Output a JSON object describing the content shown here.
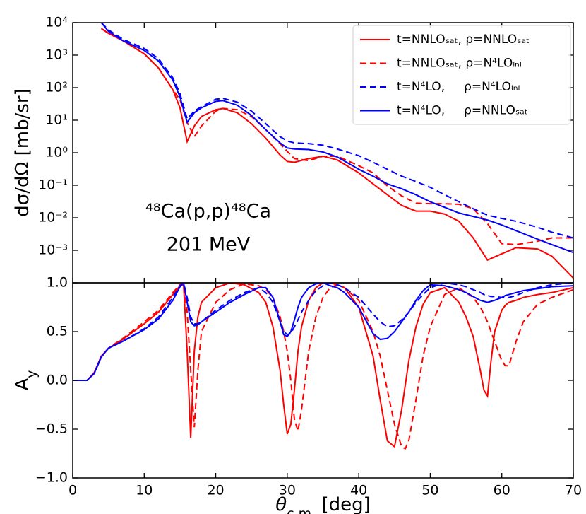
{
  "chart_data": [
    {
      "type": "line",
      "ylabel": "dσ/dΩ [mb/sr]",
      "annotations": [
        "⁴⁸Ca(p,p)⁴⁸Ca",
        "201 MeV"
      ],
      "log_y": true,
      "legend": "upper right",
      "xlim": [
        0,
        70
      ],
      "ylim": [
        0.0001,
        10000
      ],
      "xticks": [
        0,
        10,
        20,
        30,
        40,
        50,
        60,
        70
      ],
      "yticks": [
        {
          "value": 0.001,
          "label": "10⁻³"
        },
        {
          "value": 0.01,
          "label": "10⁻²"
        },
        {
          "value": 0.1,
          "label": "10⁻¹"
        },
        {
          "value": 1,
          "label": "10⁰"
        },
        {
          "value": 10,
          "label": "10¹"
        },
        {
          "value": 100,
          "label": "10²"
        },
        {
          "value": 1000,
          "label": "10³"
        },
        {
          "value": 10000,
          "label": "10⁴"
        }
      ],
      "x": [
        4,
        5,
        7,
        10,
        12,
        14,
        15,
        16,
        17,
        18,
        20,
        21,
        23,
        25,
        27,
        29,
        30,
        31,
        33,
        35,
        37,
        40,
        42,
        44,
        46,
        48,
        50,
        52,
        54,
        56,
        58,
        60,
        62,
        65,
        67,
        70
      ],
      "series": [
        {
          "name": "t=NNLOₛₐₜ, ρ=NNLOₛₐₜ",
          "color": "#ff0000",
          "linestyle": "solid",
          "values": [
            6600,
            4700,
            2800,
            1100,
            400,
            86,
            24,
            2.2,
            6.6,
            13,
            21,
            23,
            17,
            7.8,
            2.8,
            0.85,
            0.54,
            0.51,
            0.66,
            0.78,
            0.6,
            0.24,
            0.11,
            0.051,
            0.024,
            0.016,
            0.016,
            0.013,
            0.0078,
            0.0024,
            0.0005,
            0.00078,
            0.0012,
            0.0011,
            0.00066,
            0.00014
          ]
        },
        {
          "name": "t=NNLOₛₐₜ, ρ=N⁴LOₗₙₗ",
          "color": "#ff0000",
          "linestyle": "dashed",
          "values": [
            6600,
            4700,
            2800,
            1100,
            400,
            86,
            43,
            8.5,
            3.1,
            6.6,
            19,
            23,
            21,
            13,
            5.1,
            1.9,
            1.1,
            0.66,
            0.57,
            0.78,
            0.78,
            0.4,
            0.24,
            0.095,
            0.047,
            0.028,
            0.027,
            0.027,
            0.026,
            0.019,
            0.0066,
            0.0016,
            0.0015,
            0.0019,
            0.0024,
            0.0024
          ]
        },
        {
          "name": "t=N⁴LO,     ρ=N⁴LOₗₙₗ",
          "color": "#0000ff",
          "linestyle": "dashed",
          "values": [
            10000,
            6000,
            3100,
            1600,
            780,
            200,
            66,
            11,
            19,
            26,
            44,
            47,
            36,
            19,
            7.8,
            3.1,
            2.3,
            2.0,
            1.9,
            1.7,
            1.3,
            0.81,
            0.51,
            0.31,
            0.19,
            0.13,
            0.086,
            0.051,
            0.031,
            0.019,
            0.012,
            0.0095,
            0.0078,
            0.0051,
            0.0036,
            0.0024
          ]
        },
        {
          "name": "t=N⁴LO,     ρ=NNLOₛₐₜ",
          "color": "#0000ff",
          "linestyle": "solid",
          "values": [
            10000,
            5400,
            2800,
            1400,
            660,
            170,
            52,
            8.6,
            17,
            24,
            38,
            40,
            29,
            14,
            5.1,
            2.0,
            1.4,
            1.3,
            1.25,
            1.05,
            0.74,
            0.31,
            0.19,
            0.11,
            0.078,
            0.051,
            0.031,
            0.021,
            0.014,
            0.011,
            0.0085,
            0.006,
            0.004,
            0.0022,
            0.0015,
            0.00085
          ]
        }
      ]
    },
    {
      "type": "line",
      "ylabel": [
        "A",
        "y"
      ],
      "xlabel": [
        "θ",
        "c.m.",
        " [deg]"
      ],
      "xlim": [
        0,
        70
      ],
      "ylim": [
        -1,
        1
      ],
      "xticks": [
        0,
        10,
        20,
        30,
        40,
        50,
        60,
        70
      ],
      "yticks": [
        {
          "value": -1,
          "label": "−1.0"
        },
        {
          "value": -0.5,
          "label": "−0.5"
        },
        {
          "value": 0,
          "label": "0.0"
        },
        {
          "value": 0.5,
          "label": "0.5"
        },
        {
          "value": 1,
          "label": "1.0"
        }
      ],
      "x": [
        0,
        2,
        3,
        4,
        5,
        7,
        10,
        12,
        14,
        15,
        15.5,
        16,
        16.5,
        17,
        17.5,
        18,
        20,
        22,
        24,
        26,
        27,
        28,
        29,
        29.5,
        30,
        30.5,
        31,
        31.5,
        32,
        33,
        34,
        35,
        36,
        37,
        38,
        40,
        42,
        43,
        44,
        45,
        46,
        46.5,
        47,
        48,
        49,
        50,
        52,
        54,
        55,
        56,
        57,
        57.5,
        58,
        58.5,
        59,
        60,
        60.5,
        61,
        62,
        63,
        65,
        67,
        70
      ],
      "series": [
        {
          "name": "t=NNLOₛₐₜ, ρ=NNLOₛₐₜ",
          "color": "#ff0000",
          "linestyle": "solid",
          "values": [
            0,
            0,
            0.08,
            0.25,
            0.33,
            0.42,
            0.58,
            0.7,
            0.88,
            0.97,
            0.98,
            0.3,
            -0.59,
            0.3,
            0.65,
            0.8,
            0.95,
            1.0,
            0.98,
            0.9,
            0.8,
            0.55,
            0.1,
            -0.25,
            -0.55,
            -0.45,
            -0.1,
            0.3,
            0.55,
            0.82,
            0.95,
            1.0,
            1.0,
            0.98,
            0.95,
            0.75,
            0.25,
            -0.2,
            -0.62,
            -0.68,
            -0.3,
            -0.05,
            0.2,
            0.55,
            0.78,
            0.9,
            0.95,
            0.8,
            0.65,
            0.45,
            0.1,
            -0.1,
            -0.16,
            0.2,
            0.5,
            0.72,
            0.77,
            0.8,
            0.82,
            0.85,
            0.88,
            0.9,
            0.95
          ]
        },
        {
          "name": "t=NNLOₛₐₜ, ρ=N⁴LOₗₙₗ",
          "color": "#ff0000",
          "linestyle": "dashed",
          "values": [
            0,
            0,
            0.07,
            0.24,
            0.33,
            0.43,
            0.6,
            0.72,
            0.9,
            0.98,
            1.0,
            0.7,
            0.1,
            -0.48,
            0.1,
            0.5,
            0.8,
            0.93,
            0.99,
            0.97,
            0.93,
            0.85,
            0.65,
            0.5,
            0.3,
            0.0,
            -0.4,
            -0.52,
            -0.3,
            0.3,
            0.65,
            0.85,
            0.95,
            0.98,
            0.95,
            0.82,
            0.5,
            0.25,
            -0.1,
            -0.45,
            -0.68,
            -0.7,
            -0.62,
            -0.2,
            0.25,
            0.55,
            0.88,
            0.95,
            0.9,
            0.85,
            0.75,
            0.68,
            0.6,
            0.5,
            0.4,
            0.2,
            0.15,
            0.15,
            0.4,
            0.6,
            0.78,
            0.85,
            0.93
          ]
        },
        {
          "name": "t=N⁴LO,     ρ=N⁴LOₗₙₗ",
          "color": "#0000ff",
          "linestyle": "dashed",
          "values": [
            0,
            0,
            0.07,
            0.24,
            0.33,
            0.4,
            0.53,
            0.65,
            0.85,
            0.97,
            1.0,
            0.85,
            0.65,
            0.58,
            0.58,
            0.6,
            0.72,
            0.82,
            0.9,
            0.95,
            0.9,
            0.8,
            0.6,
            0.5,
            0.47,
            0.48,
            0.55,
            0.62,
            0.7,
            0.82,
            0.92,
            0.97,
            1.0,
            0.98,
            0.95,
            0.85,
            0.68,
            0.6,
            0.55,
            0.56,
            0.62,
            0.66,
            0.7,
            0.8,
            0.88,
            0.95,
            1.0,
            0.98,
            0.96,
            0.93,
            0.9,
            0.88,
            0.87,
            0.86,
            0.86,
            0.85,
            0.85,
            0.85,
            0.87,
            0.9,
            0.95,
            0.98,
            1.0
          ]
        },
        {
          "name": "t=N⁴LO,     ρ=NNLOₛₐₜ",
          "color": "#0000ff",
          "linestyle": "solid",
          "values": [
            0,
            0,
            0.07,
            0.24,
            0.33,
            0.4,
            0.52,
            0.63,
            0.82,
            0.96,
            1.0,
            0.8,
            0.6,
            0.56,
            0.57,
            0.6,
            0.7,
            0.8,
            0.88,
            0.95,
            0.95,
            0.85,
            0.6,
            0.47,
            0.45,
            0.5,
            0.62,
            0.75,
            0.85,
            0.95,
            0.99,
            1.0,
            0.97,
            0.95,
            0.9,
            0.75,
            0.48,
            0.42,
            0.43,
            0.5,
            0.6,
            0.65,
            0.7,
            0.82,
            0.92,
            0.98,
            0.97,
            0.93,
            0.9,
            0.86,
            0.82,
            0.81,
            0.8,
            0.81,
            0.82,
            0.85,
            0.87,
            0.88,
            0.9,
            0.92,
            0.94,
            0.96,
            0.97
          ]
        }
      ]
    }
  ]
}
